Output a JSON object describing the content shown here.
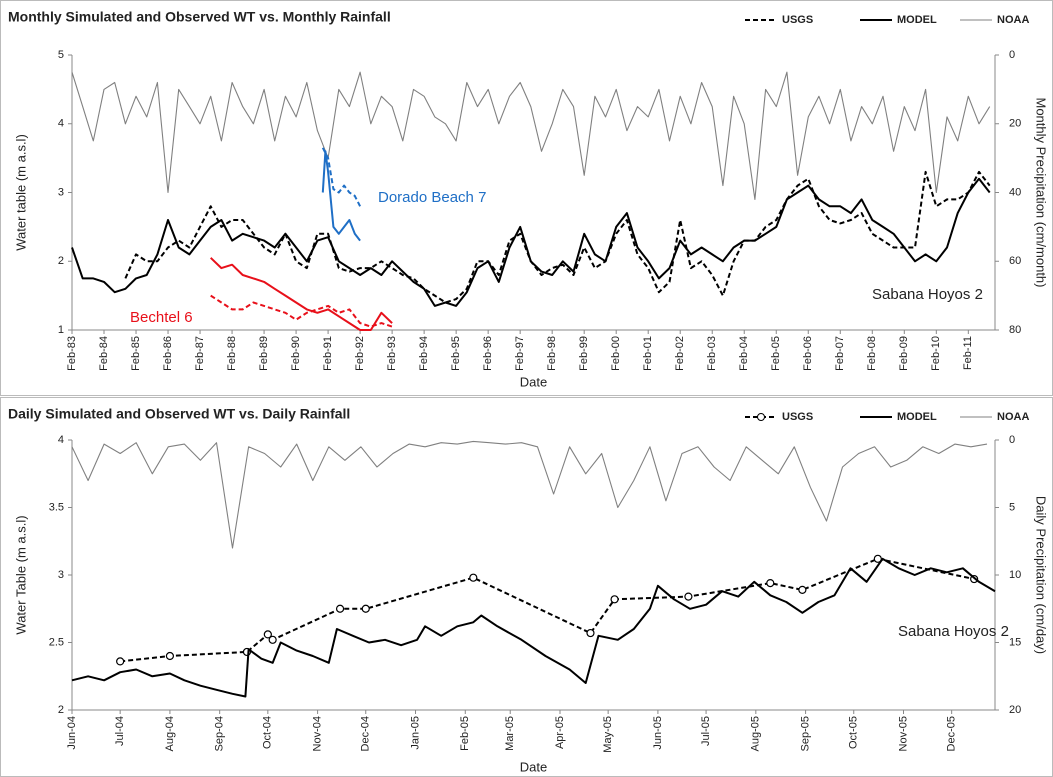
{
  "chart_data": [
    {
      "type": "line",
      "title": "Monthly Simulated and Observed WT vs. Monthly Rainfall",
      "xlabel": "Date",
      "ylabel": "Water table  (m a.s.l)",
      "y2label": "Monthly Precipitation (cm/month)",
      "legend": "top-right",
      "xlim": [
        "Feb-83",
        "Dec-11"
      ],
      "xticks": [
        "Feb-83",
        "Feb-84",
        "Feb-85",
        "Feb-86",
        "Feb-87",
        "Feb-88",
        "Feb-89",
        "Feb-90",
        "Feb-91",
        "Feb-92",
        "Feb-93",
        "Feb-94",
        "Feb-95",
        "Feb-96",
        "Feb-97",
        "Feb-98",
        "Feb-99",
        "Feb-00",
        "Feb-01",
        "Feb-02",
        "Feb-03",
        "Feb-04",
        "Feb-05",
        "Feb-06",
        "Feb-07",
        "Feb-08",
        "Feb-09",
        "Feb-10",
        "Feb-11"
      ],
      "ylim": [
        1,
        5
      ],
      "yticks": [
        1,
        2,
        3,
        4,
        5
      ],
      "y2lim": [
        0,
        80
      ],
      "y2ticks": [
        0,
        20,
        40,
        60,
        80
      ],
      "y2_inverted": true,
      "x": [
        "Feb-83",
        "Jun-83",
        "Oct-83",
        "Feb-84",
        "Jun-84",
        "Oct-84",
        "Feb-85",
        "Jun-85",
        "Oct-85",
        "Feb-86",
        "Jun-86",
        "Oct-86",
        "Feb-87",
        "Jun-87",
        "Oct-87",
        "Feb-88",
        "Jun-88",
        "Oct-88",
        "Feb-89",
        "Jun-89",
        "Oct-89",
        "Feb-90",
        "Jun-90",
        "Oct-90",
        "Feb-91",
        "Jun-91",
        "Oct-91",
        "Feb-92",
        "Jun-92",
        "Oct-92",
        "Feb-93",
        "Jun-93",
        "Oct-93",
        "Feb-94",
        "Jun-94",
        "Oct-94",
        "Feb-95",
        "Jun-95",
        "Oct-95",
        "Feb-96",
        "Jun-96",
        "Oct-96",
        "Feb-97",
        "Jun-97",
        "Oct-97",
        "Feb-98",
        "Jun-98",
        "Oct-98",
        "Feb-99",
        "Jun-99",
        "Oct-99",
        "Feb-00",
        "Jun-00",
        "Oct-00",
        "Feb-01",
        "Jun-01",
        "Oct-01",
        "Feb-02",
        "Jun-02",
        "Oct-02",
        "Feb-03",
        "Jun-03",
        "Oct-03",
        "Feb-04",
        "Jun-04",
        "Oct-04",
        "Feb-05",
        "Jun-05",
        "Oct-05",
        "Feb-06",
        "Jun-06",
        "Oct-06",
        "Feb-07",
        "Jun-07",
        "Oct-07",
        "Feb-08",
        "Jun-08",
        "Oct-08",
        "Feb-09",
        "Jun-09",
        "Oct-09",
        "Feb-10",
        "Jun-10",
        "Oct-10",
        "Feb-11",
        "Jun-11",
        "Oct-11"
      ],
      "series": [
        {
          "name": "USGS",
          "color": "#000000",
          "line_style": "dashed",
          "values": [
            null,
            null,
            null,
            null,
            null,
            1.75,
            2.1,
            2.0,
            2.0,
            2.2,
            2.3,
            2.2,
            2.5,
            2.8,
            2.5,
            2.6,
            2.6,
            2.4,
            2.2,
            2.1,
            2.4,
            2.0,
            1.9,
            2.4,
            2.4,
            1.9,
            1.85,
            1.9,
            1.9,
            2.0,
            1.9,
            1.8,
            1.75,
            1.6,
            1.5,
            1.4,
            1.45,
            1.6,
            2.0,
            2.0,
            1.8,
            2.3,
            2.4,
            2.0,
            1.8,
            1.9,
            1.95,
            1.8,
            2.2,
            1.9,
            2.0,
            2.4,
            2.6,
            2.1,
            1.9,
            1.55,
            1.7,
            2.6,
            1.9,
            2.0,
            1.8,
            1.5,
            2.0,
            2.3,
            2.3,
            2.5,
            2.6,
            2.9,
            3.1,
            3.2,
            2.8,
            2.6,
            2.55,
            2.6,
            2.7,
            2.4,
            2.3,
            2.2,
            2.2,
            2.2,
            3.3,
            2.8,
            2.9,
            2.9,
            3.0,
            3.3,
            3.1
          ]
        },
        {
          "name": "MODEL",
          "color": "#000000",
          "line_style": "solid",
          "values": [
            2.2,
            1.75,
            1.75,
            1.7,
            1.55,
            1.6,
            1.75,
            1.8,
            2.1,
            2.6,
            2.2,
            2.1,
            2.3,
            2.5,
            2.6,
            2.3,
            2.4,
            2.35,
            2.3,
            2.2,
            2.4,
            2.2,
            2.0,
            2.3,
            2.35,
            2.0,
            1.9,
            1.8,
            1.9,
            1.8,
            2.0,
            1.85,
            1.7,
            1.6,
            1.35,
            1.4,
            1.35,
            1.55,
            1.9,
            2.0,
            1.7,
            2.2,
            2.5,
            2.0,
            1.85,
            1.8,
            2.0,
            1.85,
            2.4,
            2.1,
            2.0,
            2.5,
            2.7,
            2.2,
            2.0,
            1.75,
            1.9,
            2.3,
            2.1,
            2.2,
            2.1,
            2.0,
            2.2,
            2.3,
            2.3,
            2.4,
            2.5,
            2.9,
            3.0,
            3.1,
            2.9,
            2.8,
            2.8,
            2.7,
            2.9,
            2.6,
            2.5,
            2.4,
            2.2,
            2.0,
            2.1,
            2.0,
            2.2,
            2.7,
            3.0,
            3.2,
            3.0
          ]
        },
        {
          "name": "NOAA",
          "color": "#808080",
          "line_style": "thin",
          "axis": "y2",
          "values": [
            5,
            15,
            25,
            10,
            8,
            20,
            12,
            18,
            8,
            40,
            10,
            15,
            20,
            12,
            25,
            8,
            15,
            20,
            10,
            25,
            12,
            18,
            8,
            22,
            30,
            10,
            15,
            5,
            20,
            12,
            15,
            25,
            10,
            12,
            18,
            20,
            25,
            8,
            15,
            10,
            20,
            12,
            8,
            15,
            28,
            20,
            10,
            15,
            35,
            12,
            18,
            10,
            22,
            15,
            18,
            10,
            25,
            12,
            20,
            8,
            15,
            38,
            12,
            20,
            42,
            10,
            15,
            5,
            35,
            18,
            12,
            20,
            10,
            25,
            15,
            20,
            12,
            28,
            15,
            22,
            10,
            40,
            18,
            25,
            12,
            20,
            15
          ]
        }
      ],
      "wells": [
        {
          "name": "Dorado Beach 7",
          "color": "#1f6fc6",
          "observed": {
            "x": [
              "Dec-90",
              "Feb-91",
              "Apr-91",
              "Jun-91",
              "Aug-91",
              "Oct-91",
              "Dec-91",
              "Feb-92"
            ],
            "values": [
              3.65,
              3.5,
              3.05,
              3.0,
              3.1,
              3.0,
              2.95,
              2.8
            ]
          },
          "model": {
            "x": [
              "Dec-90",
              "Jan-91",
              "Feb-91",
              "Apr-91",
              "Jun-91",
              "Aug-91",
              "Oct-91",
              "Dec-91",
              "Feb-92"
            ],
            "values": [
              3.0,
              3.6,
              3.3,
              2.5,
              2.4,
              2.5,
              2.6,
              2.4,
              2.3
            ]
          }
        },
        {
          "name": "Bechtel 6",
          "color": "#e8101a",
          "observed": {
            "x": [
              "Jun-87",
              "Oct-87",
              "Feb-88",
              "Jun-88",
              "Oct-88",
              "Feb-89",
              "Jun-89",
              "Oct-89",
              "Feb-90",
              "Jun-90",
              "Oct-90",
              "Feb-91",
              "Jun-91",
              "Oct-91",
              "Feb-92",
              "Jun-92",
              "Oct-92",
              "Feb-93"
            ],
            "values": [
              1.5,
              1.4,
              1.3,
              1.3,
              1.4,
              1.35,
              1.3,
              1.25,
              1.15,
              1.25,
              1.3,
              1.35,
              1.25,
              1.3,
              1.1,
              1.05,
              1.1,
              1.05
            ]
          },
          "model": {
            "x": [
              "Jun-87",
              "Oct-87",
              "Feb-88",
              "Jun-88",
              "Oct-88",
              "Feb-89",
              "Jun-89",
              "Oct-89",
              "Feb-90",
              "Jun-90",
              "Oct-90",
              "Feb-91",
              "Jun-91",
              "Oct-91",
              "Feb-92",
              "Jun-92",
              "Oct-92",
              "Feb-93"
            ],
            "values": [
              2.05,
              1.9,
              1.95,
              1.8,
              1.75,
              1.7,
              1.6,
              1.5,
              1.4,
              1.3,
              1.25,
              1.3,
              1.2,
              1.1,
              1.0,
              1.0,
              1.25,
              1.1
            ]
          }
        }
      ],
      "annotations": [
        "Sabana Hoyos 2"
      ]
    },
    {
      "type": "line",
      "title": "Daily Simulated and Observed WT vs. Daily Rainfall",
      "xlabel": "Date",
      "ylabel": "Water Table  (m a.s.l)",
      "y2label": "Daily Precipitation (cm/day)",
      "legend": "top-right",
      "xlim": [
        0,
        575
      ],
      "xticks": [
        {
          "value": 0,
          "label": "Jun-04"
        },
        {
          "value": 30,
          "label": "Jul-04"
        },
        {
          "value": 61,
          "label": "Aug-04"
        },
        {
          "value": 92,
          "label": "Sep-04"
        },
        {
          "value": 122,
          "label": "Oct-04"
        },
        {
          "value": 153,
          "label": "Nov-04"
        },
        {
          "value": 183,
          "label": "Dec-04"
        },
        {
          "value": 214,
          "label": "Jan-05"
        },
        {
          "value": 245,
          "label": "Feb-05"
        },
        {
          "value": 273,
          "label": "Mar-05"
        },
        {
          "value": 304,
          "label": "Apr-05"
        },
        {
          "value": 334,
          "label": "May-05"
        },
        {
          "value": 365,
          "label": "Jun-05"
        },
        {
          "value": 395,
          "label": "Jul-05"
        },
        {
          "value": 426,
          "label": "Aug-05"
        },
        {
          "value": 457,
          "label": "Sep-05"
        },
        {
          "value": 487,
          "label": "Oct-05"
        },
        {
          "value": 518,
          "label": "Nov-05"
        },
        {
          "value": 548,
          "label": "Dec-05"
        }
      ],
      "ylim": [
        2,
        4
      ],
      "yticks": [
        2,
        2.5,
        3,
        3.5,
        4
      ],
      "y2lim": [
        0,
        20
      ],
      "y2ticks": [
        0,
        5,
        10,
        15,
        20
      ],
      "y2_inverted": true,
      "series": [
        {
          "name": "USGS",
          "color": "#000000",
          "line_style": "dashed",
          "markers": true,
          "x": [
            30,
            61,
            109,
            122,
            125,
            167,
            183,
            250,
            323,
            338,
            384,
            435,
            455,
            502,
            562
          ],
          "values": [
            2.36,
            2.4,
            2.43,
            2.56,
            2.52,
            2.75,
            2.75,
            2.98,
            2.57,
            2.82,
            2.84,
            2.94,
            2.89,
            3.12,
            2.97
          ]
        },
        {
          "name": "MODEL",
          "color": "#000000",
          "line_style": "solid",
          "x": [
            0,
            10,
            20,
            30,
            40,
            50,
            61,
            70,
            80,
            90,
            100,
            108,
            110,
            118,
            125,
            130,
            140,
            150,
            160,
            165,
            175,
            185,
            195,
            205,
            215,
            220,
            230,
            240,
            250,
            255,
            265,
            280,
            295,
            310,
            320,
            328,
            340,
            350,
            360,
            365,
            375,
            385,
            395,
            405,
            415,
            425,
            435,
            445,
            455,
            465,
            475,
            485,
            495,
            505,
            515,
            525,
            535,
            545,
            555,
            565,
            575
          ],
          "values": [
            2.22,
            2.25,
            2.22,
            2.28,
            2.3,
            2.25,
            2.27,
            2.22,
            2.18,
            2.15,
            2.12,
            2.1,
            2.45,
            2.38,
            2.35,
            2.5,
            2.44,
            2.4,
            2.35,
            2.6,
            2.55,
            2.5,
            2.52,
            2.48,
            2.52,
            2.62,
            2.55,
            2.62,
            2.65,
            2.7,
            2.62,
            2.52,
            2.4,
            2.3,
            2.2,
            2.55,
            2.52,
            2.6,
            2.75,
            2.92,
            2.82,
            2.75,
            2.78,
            2.88,
            2.84,
            2.95,
            2.85,
            2.8,
            2.72,
            2.8,
            2.85,
            3.05,
            2.95,
            3.12,
            3.05,
            3.0,
            3.05,
            3.02,
            3.05,
            2.95,
            2.88
          ]
        },
        {
          "name": "NOAA",
          "color": "#808080",
          "line_style": "thin",
          "axis": "y2",
          "x": [
            0,
            10,
            20,
            30,
            40,
            50,
            60,
            70,
            80,
            90,
            100,
            110,
            120,
            130,
            140,
            150,
            160,
            170,
            180,
            190,
            200,
            210,
            220,
            230,
            240,
            250,
            260,
            270,
            280,
            290,
            300,
            310,
            320,
            330,
            340,
            350,
            360,
            370,
            380,
            390,
            400,
            410,
            420,
            430,
            440,
            450,
            460,
            470,
            480,
            490,
            500,
            510,
            520,
            530,
            540,
            550,
            560,
            570
          ],
          "values": [
            0.5,
            3,
            0.3,
            1,
            0.2,
            2.5,
            0.5,
            0.3,
            1.5,
            0.2,
            8,
            0.5,
            1,
            2,
            0.3,
            3,
            0.5,
            1.5,
            0.5,
            2,
            1,
            0.3,
            0.5,
            0.2,
            0.3,
            0.1,
            0.2,
            0.3,
            0.2,
            0.5,
            4,
            0.5,
            2.5,
            1,
            5,
            3,
            0.5,
            4.5,
            1,
            0.5,
            2,
            3,
            0.5,
            1.5,
            2.5,
            0.5,
            3.5,
            6,
            2,
            1,
            0.5,
            2,
            1.5,
            0.5,
            1,
            0.3,
            0.5,
            0.3
          ]
        }
      ],
      "annotations": [
        "Sabana Hoyos 2"
      ]
    }
  ]
}
